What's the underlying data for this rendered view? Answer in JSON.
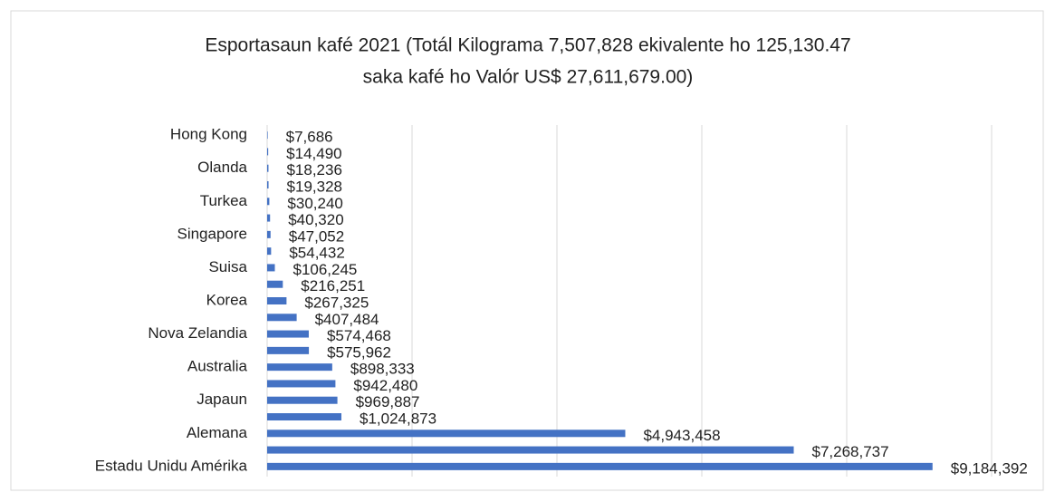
{
  "chart_data": {
    "type": "bar",
    "orientation": "horizontal",
    "title": [
      "Esportasaun kafé 2021 (Totál Kilograma 7,507,828 ekivalente ho 125,130.47",
      "saka kafé ho Valór US$ 27,611,679.00)"
    ],
    "categories": [
      "Hong Kong",
      null,
      "Olanda",
      null,
      "Turkea",
      null,
      "Singapore",
      null,
      "Suisa",
      null,
      "Korea",
      null,
      "Nova Zelandia",
      null,
      "Australia",
      null,
      "Japaun",
      null,
      "Alemana",
      null,
      "Estadu Unidu Amérika"
    ],
    "values": [
      7686,
      14490,
      18236,
      19328,
      30240,
      40320,
      47052,
      54432,
      106245,
      216251,
      267325,
      407484,
      574468,
      575962,
      898333,
      942480,
      969887,
      1024873,
      4943458,
      7268737,
      9184392
    ],
    "value_labels": [
      "$7,686",
      "$14,490",
      "$18,236",
      "$19,328",
      "$30,240",
      "$40,320",
      "$47,052",
      "$54,432",
      "$106,245",
      "$216,251",
      "$267,325",
      "$407,484",
      "$574,468",
      "$575,962",
      "$898,333",
      "$942,480",
      "$969,887",
      "$1,024,873",
      "$4,943,458",
      "$7,268,737",
      "$9,184,392"
    ],
    "color": "#4472c4",
    "xlim": [
      0,
      10000000
    ],
    "xticks": [
      0,
      2000000,
      4000000,
      6000000,
      8000000,
      10000000
    ],
    "grid": true
  }
}
